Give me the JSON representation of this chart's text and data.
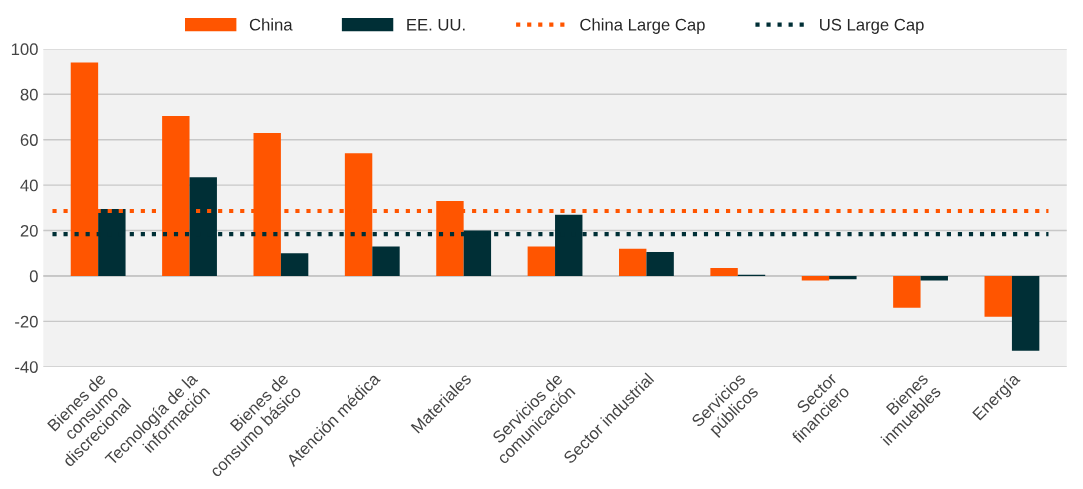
{
  "chart_data": {
    "type": "bar",
    "categories": [
      "Bienes de\nconsumo\ndiscrecional",
      "Tecnología de la\ninformación",
      "Bienes de\nconsumo básico",
      "Atención médica",
      "Materiales",
      "Servicios de\ncomunicación",
      "Sector industrial",
      "Servicios\npúblicos",
      "Sector\nfinanciero",
      "Bienes\ninmuebles",
      "Energía"
    ],
    "series": [
      {
        "name": "China",
        "color": "#ff5500",
        "values": [
          94,
          70.5,
          63,
          54,
          33,
          13,
          12,
          3.5,
          -2,
          -14,
          -18
        ]
      },
      {
        "name": "EE. UU.",
        "color": "#002f36",
        "values": [
          29.5,
          43.5,
          10,
          13,
          20,
          27,
          10.5,
          0.5,
          -1.5,
          -2,
          -33
        ]
      }
    ],
    "ref_lines": [
      {
        "axis": "y",
        "value": 28.6,
        "label": "China Large Cap",
        "color": "#ff5500",
        "line_style": "dotted"
      },
      {
        "axis": "y",
        "value": 18.4,
        "label": "US Large Cap",
        "color": "#002f36",
        "line_style": "dotted"
      }
    ],
    "ylim": [
      -40,
      100
    ],
    "yticks": [
      -40,
      -20,
      0,
      20,
      40,
      60,
      80,
      100
    ],
    "grid": "y",
    "legend": "top"
  }
}
